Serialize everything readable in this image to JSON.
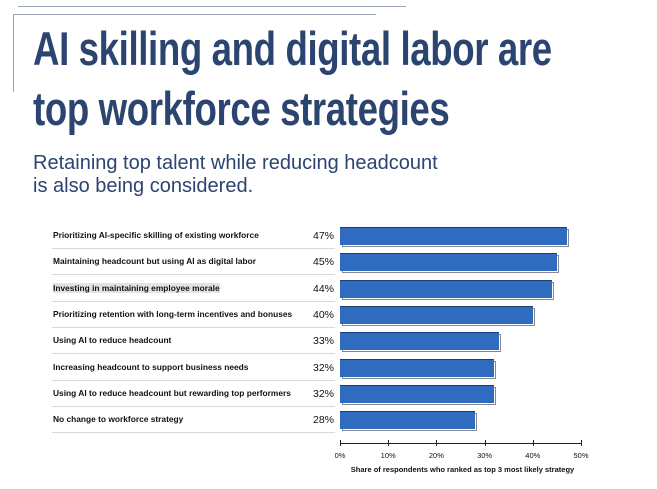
{
  "title_lines": [
    "AI skilling and digital labor are",
    "top workforce strategies"
  ],
  "subtitle": "Retaining top talent while reducing headcount is also being considered.",
  "chart_data": {
    "type": "bar",
    "orientation": "horizontal",
    "categories": [
      "Prioritizing AI-specific skilling of existing workforce",
      "Maintaining headcount but using AI as digital labor",
      "Investing in maintaining employee morale",
      "Prioritizing retention with long-term incentives and bonuses",
      "Using AI to reduce headcount",
      "Increasing headcount to support business needs",
      "Using AI to reduce headcount but rewarding top performers",
      "No change to workforce strategy"
    ],
    "values": [
      47,
      45,
      44,
      40,
      33,
      32,
      32,
      28
    ],
    "data_labels": [
      "47%",
      "45%",
      "44%",
      "40%",
      "33%",
      "32%",
      "32%",
      "28%"
    ],
    "xlabel": "Share of respondents who ranked as top 3 most likely strategy",
    "xlim": [
      0,
      50
    ],
    "xticks": [
      "0%",
      "10%",
      "20%",
      "30%",
      "40%",
      "50%"
    ],
    "bar_color": "#2f6bbf",
    "grid": false
  }
}
